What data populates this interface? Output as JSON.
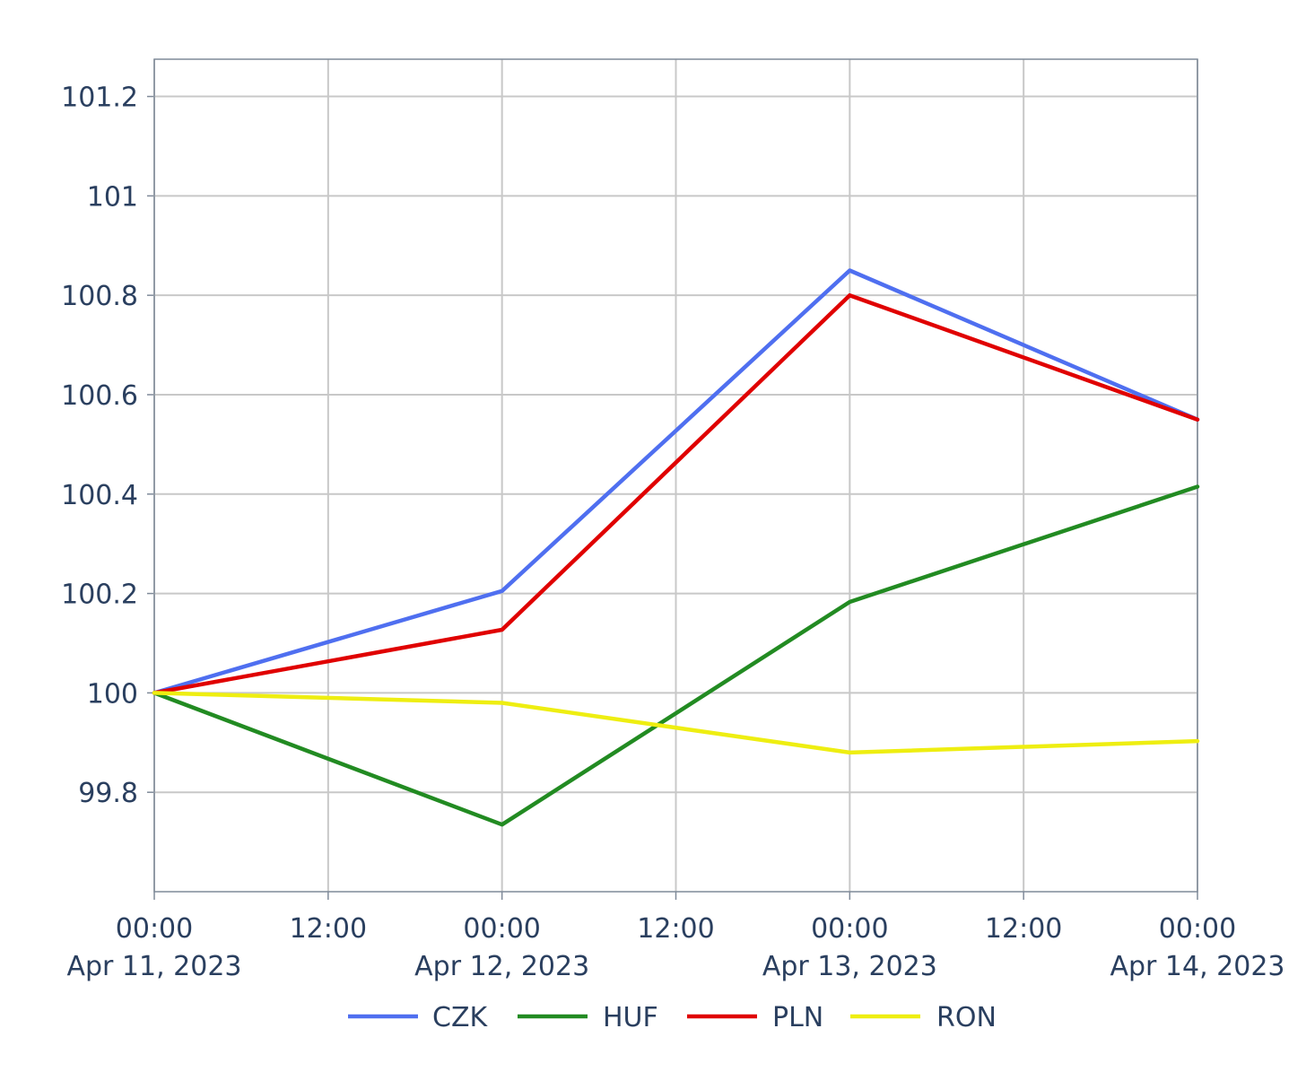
{
  "chart_data": {
    "type": "line",
    "title": "",
    "xlabel": "",
    "ylabel": "",
    "x": [
      "2023-04-11",
      "2023-04-12",
      "2023-04-13",
      "2023-04-14"
    ],
    "x_range": [
      "2023-04-11T00:00",
      "2023-04-14T00:00"
    ],
    "x_ticks": [
      {
        "value": "2023-04-11T00:00",
        "time": "00:00",
        "date": "Apr 11, 2023"
      },
      {
        "value": "2023-04-11T12:00",
        "time": "12:00",
        "date": ""
      },
      {
        "value": "2023-04-12T00:00",
        "time": "00:00",
        "date": "Apr 12, 2023"
      },
      {
        "value": "2023-04-12T12:00",
        "time": "12:00",
        "date": ""
      },
      {
        "value": "2023-04-13T00:00",
        "time": "00:00",
        "date": "Apr 13, 2023"
      },
      {
        "value": "2023-04-13T12:00",
        "time": "12:00",
        "date": ""
      },
      {
        "value": "2023-04-14T00:00",
        "time": "00:00",
        "date": "Apr 14, 2023"
      }
    ],
    "ylim": [
      99.6,
      101.275
    ],
    "y_ticks": [
      99.8,
      100,
      100.2,
      100.4,
      100.6,
      100.8,
      101,
      101.2
    ],
    "y_tick_labels": [
      "99.8",
      "100",
      "100.2",
      "100.4",
      "100.6",
      "100.8",
      "101",
      "101.2"
    ],
    "grid": true,
    "legend_position": "bottom-center",
    "series": [
      {
        "name": "CZK",
        "color": "#4f6ff0",
        "values": [
          100,
          100.205,
          100.85,
          100.55
        ]
      },
      {
        "name": "HUF",
        "color": "#228b22",
        "values": [
          100,
          99.735,
          100.183,
          100.415
        ]
      },
      {
        "name": "PLN",
        "color": "#e00000",
        "values": [
          100,
          100.127,
          100.8,
          100.55
        ]
      },
      {
        "name": "RON",
        "color": "#eeee11",
        "values": [
          100,
          99.98,
          99.88,
          99.903
        ]
      }
    ]
  }
}
